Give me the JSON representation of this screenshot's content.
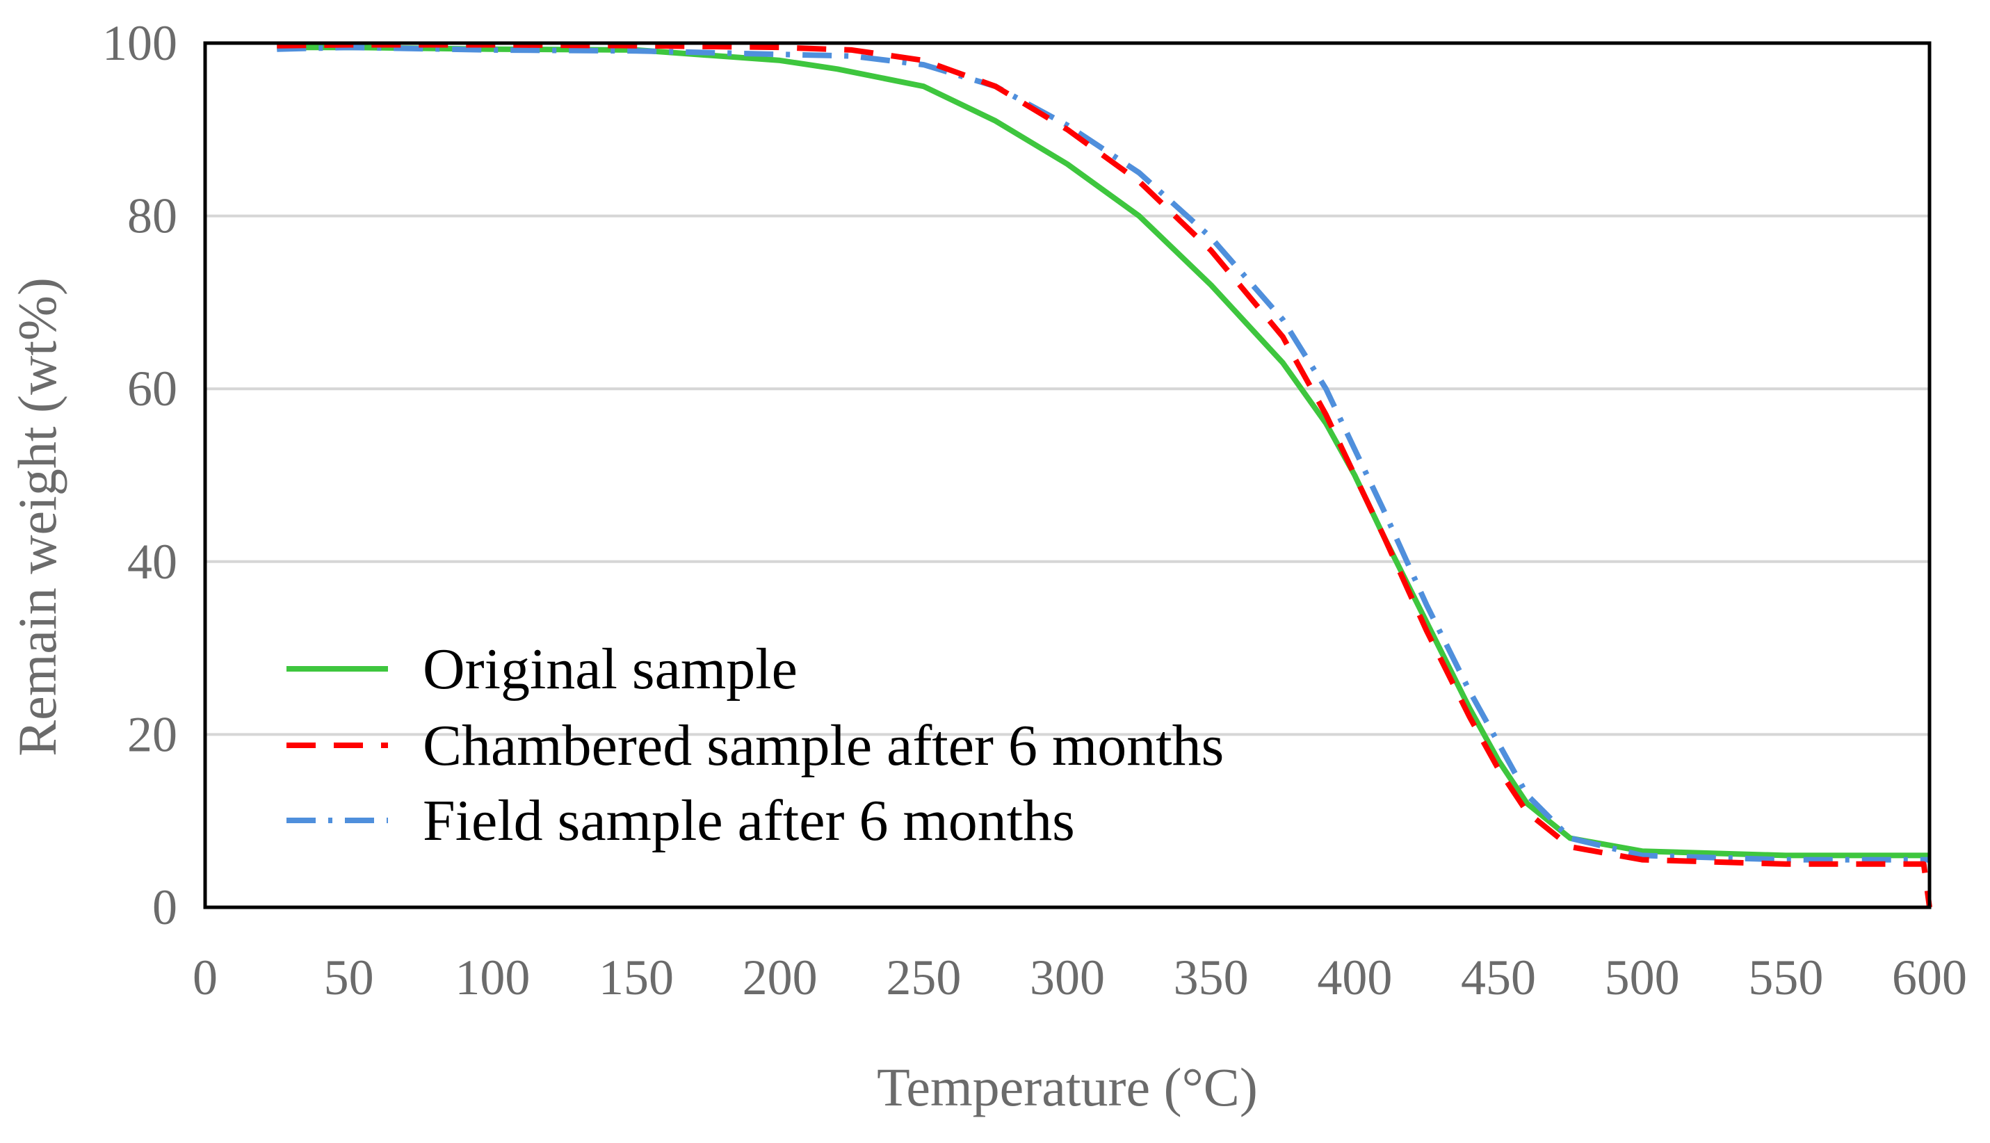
{
  "chart_data": {
    "type": "line",
    "title": "",
    "xlabel": "Temperature (°C)",
    "ylabel": "Remain weight (wt%)",
    "xlim": [
      0,
      600
    ],
    "ylim": [
      0,
      100
    ],
    "xticks": [
      0,
      50,
      100,
      150,
      200,
      250,
      300,
      350,
      400,
      450,
      500,
      550,
      600
    ],
    "yticks": [
      0,
      20,
      40,
      60,
      80,
      100
    ],
    "grid": "horizontal",
    "legend_position": "bottom-left",
    "series": [
      {
        "name": "Original sample",
        "color": "#3ec63e",
        "dash": "solid",
        "x": [
          25,
          50,
          100,
          150,
          200,
          220,
          250,
          275,
          300,
          325,
          350,
          375,
          390,
          400,
          410,
          425,
          440,
          450,
          460,
          475,
          500,
          550,
          600
        ],
        "y": [
          99.5,
          99.5,
          99.3,
          99.2,
          98,
          97,
          95,
          91,
          86,
          80,
          72,
          63,
          56,
          50,
          43,
          33,
          23,
          17,
          12,
          8,
          6.5,
          6,
          6
        ]
      },
      {
        "name": "Chambered sample after 6 months",
        "color": "#ff0000",
        "dash": "dashed",
        "x": [
          25,
          50,
          100,
          150,
          200,
          225,
          250,
          275,
          300,
          325,
          350,
          375,
          390,
          400,
          410,
          425,
          440,
          450,
          460,
          475,
          500,
          550,
          598,
          600
        ],
        "y": [
          99.7,
          99.8,
          99.8,
          99.7,
          99.5,
          99.2,
          98,
          95,
          90,
          84,
          76,
          66,
          57,
          50,
          43,
          32,
          22,
          16,
          11,
          7,
          5.5,
          5,
          5,
          0
        ]
      },
      {
        "name": "Field sample after 6 months",
        "color": "#4f8fdc",
        "dash": "dash-dot",
        "x": [
          25,
          50,
          100,
          150,
          200,
          225,
          250,
          275,
          300,
          325,
          350,
          375,
          390,
          400,
          410,
          425,
          440,
          450,
          460,
          475,
          500,
          550,
          600
        ],
        "y": [
          99.3,
          99.5,
          99.2,
          99.1,
          98.7,
          98.5,
          97.5,
          95,
          90.5,
          85,
          77.5,
          68,
          60,
          53,
          46,
          35,
          25,
          19,
          13,
          8,
          6,
          5.5,
          5.5
        ]
      }
    ]
  }
}
